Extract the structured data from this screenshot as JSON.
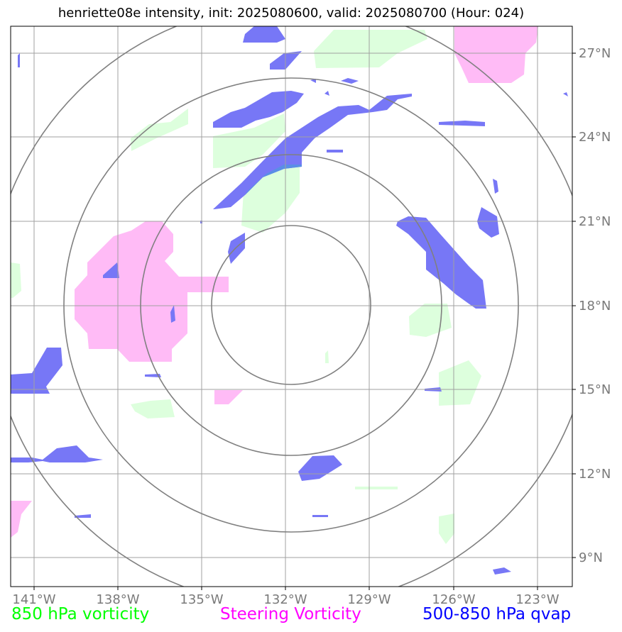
{
  "title": "henriette08e intensity, init: 2025080600, valid: 2025080700 (Hour: 024)",
  "axes": {
    "lon_ticks": [
      "141°W",
      "138°W",
      "135°W",
      "132°W",
      "129°W",
      "126°W",
      "123°W"
    ],
    "lat_ticks": [
      "27°N",
      "24°N",
      "21°N",
      "18°N",
      "15°N",
      "12°N",
      "9°N"
    ]
  },
  "legend": {
    "vort850": {
      "label": "850 hPa vorticity",
      "color": "#00ff00"
    },
    "steering": {
      "label": "Steering Vorticity",
      "color": "#ff00ff"
    },
    "qvap": {
      "label": "500-850 hPa qvap",
      "color": "#0000ff"
    }
  },
  "colors": {
    "green_fill": "#ddffdd",
    "pink_fill": "#ffbbf6",
    "blue_fill": "#7777f6",
    "grid": "#a0a0a0",
    "rings": "#808080"
  },
  "map": {
    "center": "132°W 18°N",
    "range_rings": 4
  }
}
